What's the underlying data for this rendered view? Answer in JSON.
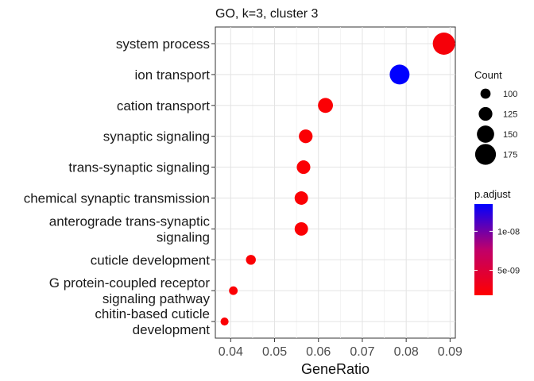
{
  "chart_data": {
    "type": "scatter",
    "title": "GO, k=3, cluster 3",
    "xlabel": "GeneRatio",
    "ylabel": "",
    "xlim": [
      0.0365,
      0.0912
    ],
    "x_ticks": [
      "0.04",
      "0.05",
      "0.06",
      "0.07",
      "0.08",
      "0.09"
    ],
    "x_tick_values": [
      0.04,
      0.05,
      0.06,
      0.07,
      0.08,
      0.09
    ],
    "categories": [
      [
        "system process"
      ],
      [
        "ion transport"
      ],
      [
        "cation transport"
      ],
      [
        "synaptic signaling"
      ],
      [
        "trans-synaptic signaling"
      ],
      [
        "chemical synaptic transmission"
      ],
      [
        "anterograde trans-synaptic",
        "signaling"
      ],
      [
        "cuticle development"
      ],
      [
        "G protein-coupled receptor",
        "signaling pathway"
      ],
      [
        "chitin-based cuticle",
        "development"
      ]
    ],
    "points": [
      {
        "x": 0.0886,
        "count": 185,
        "p_adjust": 2.2e-09
      },
      {
        "x": 0.0785,
        "count": 168,
        "p_adjust": 1.35e-08
      },
      {
        "x": 0.0616,
        "count": 134,
        "p_adjust": 2e-09
      },
      {
        "x": 0.0571,
        "count": 125,
        "p_adjust": 2e-09
      },
      {
        "x": 0.0566,
        "count": 124,
        "p_adjust": 2e-09
      },
      {
        "x": 0.0561,
        "count": 123,
        "p_adjust": 2e-09
      },
      {
        "x": 0.0561,
        "count": 123,
        "p_adjust": 2e-09
      },
      {
        "x": 0.0446,
        "count": 98,
        "p_adjust": 2e-09
      },
      {
        "x": 0.0406,
        "count": 89,
        "p_adjust": 2e-09
      },
      {
        "x": 0.0386,
        "count": 85,
        "p_adjust": 2e-09
      }
    ],
    "grid": true,
    "size_legend": {
      "title": "Count",
      "values": [
        100,
        125,
        150,
        175
      ],
      "labels": [
        "100",
        "125",
        "150",
        "175"
      ]
    },
    "color_legend": {
      "title": "p.adjust",
      "range": [
        1.8e-09,
        1.35e-08
      ],
      "ticks": [
        5e-09,
        1e-08
      ],
      "labels": [
        "5e-09",
        "1e-08"
      ],
      "low_color": "#ff0000",
      "high_color": "#0000ff"
    },
    "legend_position": "right"
  }
}
